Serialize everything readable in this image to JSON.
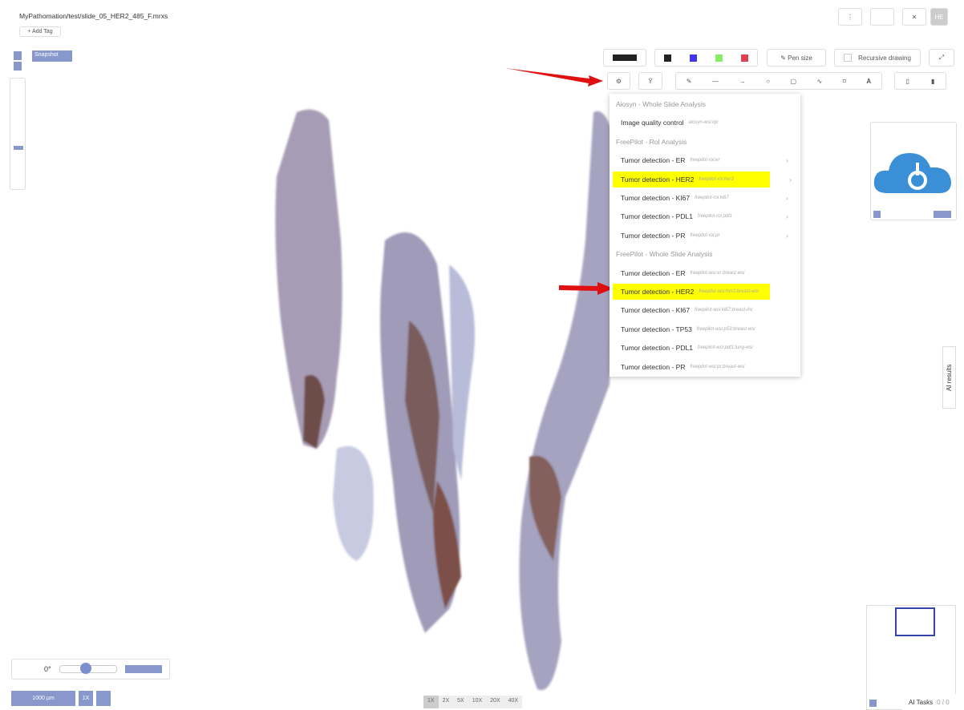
{
  "header": {
    "title": "MyPathomation/test/slide_05_HER2_485_F.mrxs",
    "add_tag": "+ Add Tag",
    "view_button": "HE"
  },
  "toolbar": {
    "snapshot": "Snapshot",
    "pen_size": "Pen size",
    "recursive_drawing": "Recursive drawing",
    "text_tool": "A"
  },
  "menu": {
    "groups": [
      {
        "title": "Aiosyn - Whole Slide Analysis",
        "items": [
          {
            "label": "Image quality control",
            "code": "aiosyn-wsi:iqc"
          }
        ]
      },
      {
        "title": "FreePilot - RoI Analysis",
        "has_submenu": true,
        "items": [
          {
            "label": "Tumor detection - ER",
            "code": "freepilot-roi:er"
          },
          {
            "label": "Tumor detection - HER2",
            "code": "freepilot-roi:her2",
            "highlighted": true
          },
          {
            "label": "Tumor detection - KI67",
            "code": "freepilot-roi:ki67"
          },
          {
            "label": "Tumor detection - PDL1",
            "code": "freepilot-roi:pdl1"
          },
          {
            "label": "Tumor detection - PR",
            "code": "freepilot-roi:pr"
          }
        ]
      },
      {
        "title": "FreePilot - Whole Slide Analysis",
        "items": [
          {
            "label": "Tumor detection - ER",
            "code": "freepilot-wsi:er:breast-wsi"
          },
          {
            "label": "Tumor detection - HER2",
            "code": "freepilot-wsi:her2:breast-wsi",
            "highlighted": true
          },
          {
            "label": "Tumor detection - KI67",
            "code": "freepilot-wsi:ki67:breast-ihc"
          },
          {
            "label": "Tumor detection - TP53",
            "code": "freepilot-wsi:p53:breast-wsi"
          },
          {
            "label": "Tumor detection - PDL1",
            "code": "freepilot-wsi:pdl1:lung-wsi"
          },
          {
            "label": "Tumor detection - PR",
            "code": "freepilot-wsi:pr:breast-wsi"
          }
        ]
      }
    ]
  },
  "side_panel": {
    "ai_results": "AI results"
  },
  "rotation": {
    "label": "0°"
  },
  "scale_bar": {
    "label": "1000 µm",
    "zoom": "1X"
  },
  "zoom_levels": [
    "1X",
    "2X",
    "5X",
    "10X",
    "20X",
    "40X"
  ],
  "ai_tasks": {
    "label": "AI Tasks",
    "count": "0 / 0"
  }
}
